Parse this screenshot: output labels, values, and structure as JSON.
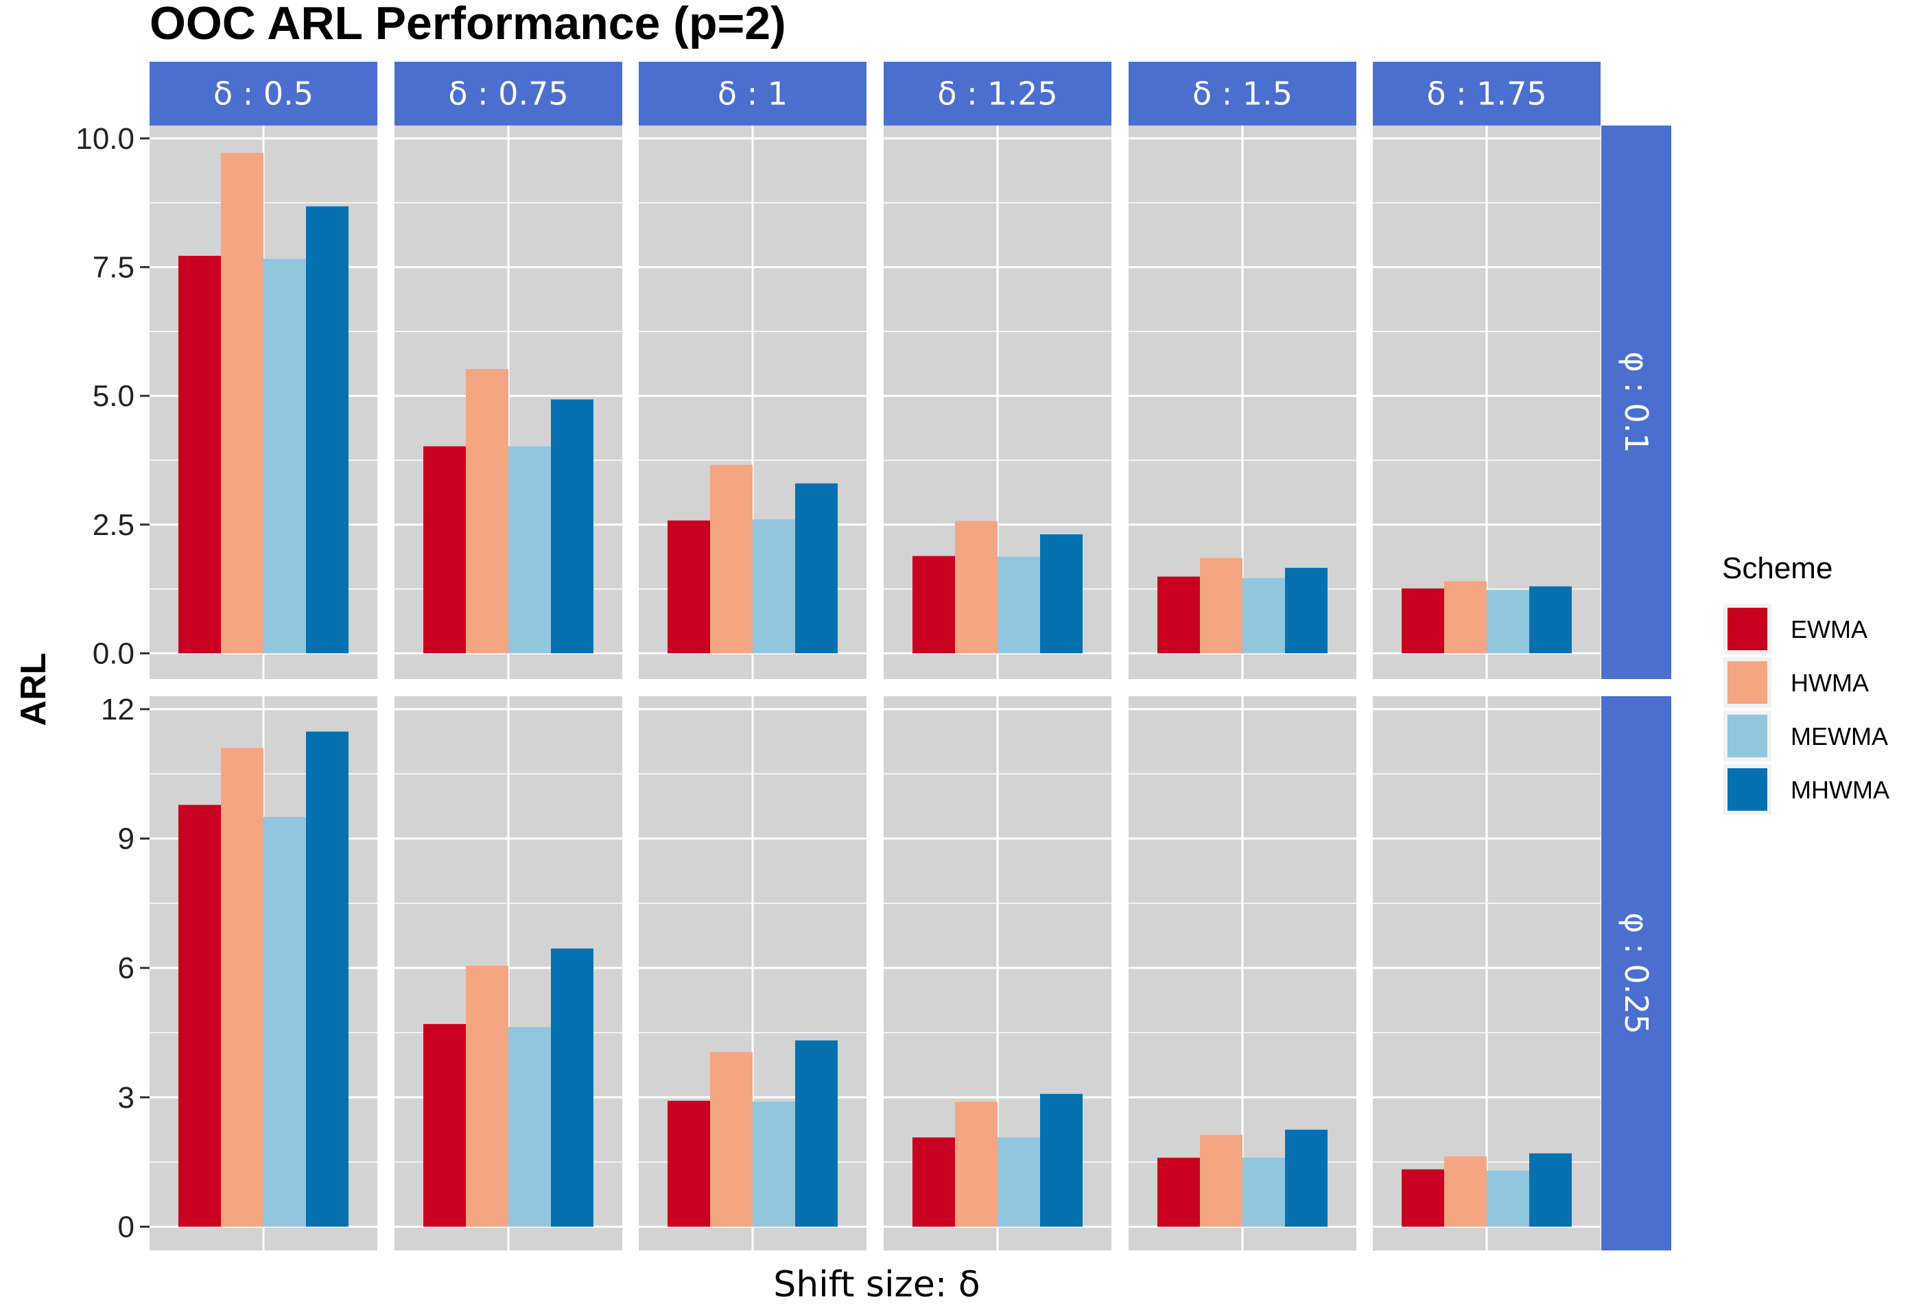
{
  "chart_data": {
    "type": "bar",
    "title": "OOC ARL Performance (p=2)",
    "xlabel": "Shift size: δ",
    "ylabel": "ARL",
    "facet_cols": [
      "δ : 0.5",
      "δ : 0.75",
      "δ : 1",
      "δ : 1.25",
      "δ : 1.5",
      "δ : 1.75"
    ],
    "facet_rows": [
      "φ : 0.1",
      "φ : 0.25"
    ],
    "legend": {
      "title": "Scheme",
      "placement": "right"
    },
    "series_names": [
      "EWMA",
      "HWMA",
      "MEWMA",
      "MHWMA"
    ],
    "colors": {
      "EWMA": "#ca0020",
      "HWMA": "#f4a582",
      "MEWMA": "#92c5de",
      "MHWMA": "#0571b0",
      "strip": "#4b6fcf",
      "panel": "#d3d3d3",
      "grid": "#ffffff"
    },
    "rows": [
      {
        "ylim": [
          -0.5,
          10.25
        ],
        "yticks": [
          0.0,
          2.5,
          5.0,
          7.5,
          10.0
        ],
        "ytick_labels": [
          "0.0",
          "2.5",
          "5.0",
          "7.5",
          "10.0"
        ],
        "values": [
          [
            7.72,
            9.72,
            7.66,
            8.68
          ],
          [
            4.02,
            5.52,
            4.02,
            4.93
          ],
          [
            2.58,
            3.66,
            2.6,
            3.3
          ],
          [
            1.89,
            2.57,
            1.88,
            2.31
          ],
          [
            1.49,
            1.85,
            1.46,
            1.66
          ],
          [
            1.26,
            1.4,
            1.23,
            1.3
          ]
        ]
      },
      {
        "ylim": [
          -0.55,
          12.3
        ],
        "yticks": [
          0,
          3,
          6,
          9,
          12
        ],
        "ytick_labels": [
          "0",
          "3",
          "6",
          "9",
          "12"
        ],
        "values": [
          [
            9.78,
            11.1,
            9.5,
            11.48
          ],
          [
            4.7,
            6.05,
            4.63,
            6.45
          ],
          [
            2.92,
            4.05,
            2.9,
            4.32
          ],
          [
            2.07,
            2.9,
            2.07,
            3.08
          ],
          [
            1.6,
            2.13,
            1.6,
            2.25
          ],
          [
            1.33,
            1.63,
            1.3,
            1.7
          ]
        ]
      }
    ]
  }
}
